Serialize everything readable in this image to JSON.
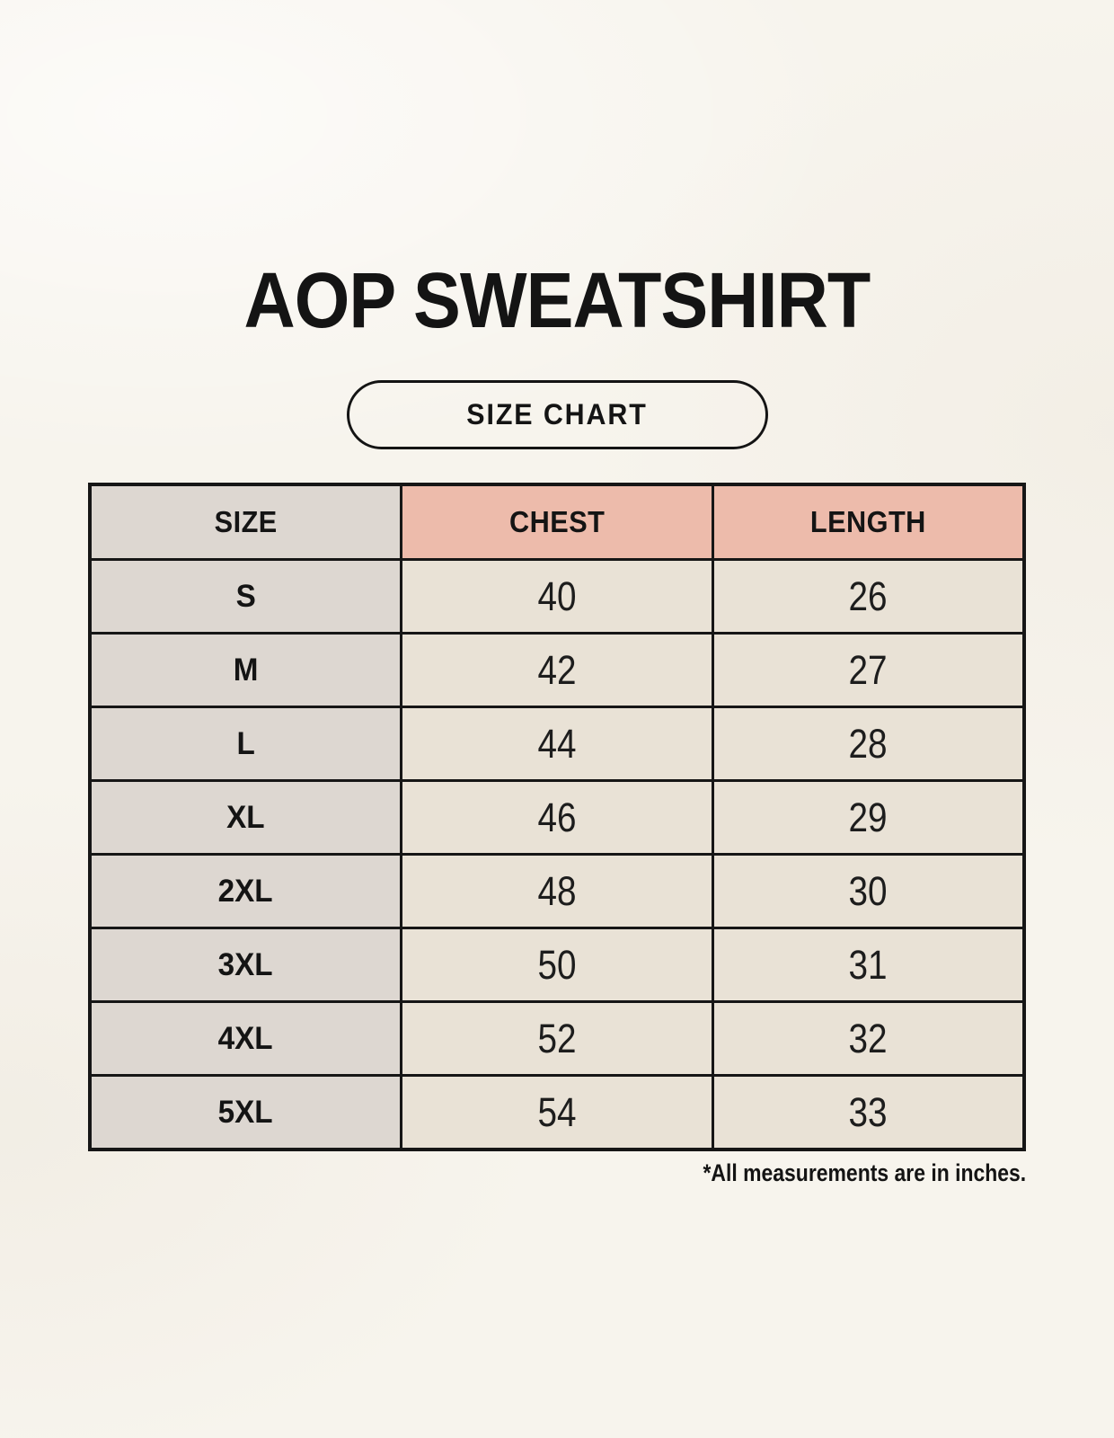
{
  "page": {
    "title": "AOP SWEATSHIRT",
    "badge_label": "SIZE CHART",
    "footnote": "*All measurements are in inches."
  },
  "chart_data": {
    "type": "table",
    "title": "AOP SWEATSHIRT",
    "subtitle": "SIZE CHART",
    "columns": [
      "SIZE",
      "CHEST",
      "LENGTH"
    ],
    "rows": [
      [
        "S",
        "40",
        "26"
      ],
      [
        "M",
        "42",
        "27"
      ],
      [
        "L",
        "44",
        "28"
      ],
      [
        "XL",
        "46",
        "29"
      ],
      [
        "2XL",
        "48",
        "30"
      ],
      [
        "3XL",
        "50",
        "31"
      ],
      [
        "4XL",
        "52",
        "32"
      ],
      [
        "5XL",
        "54",
        "33"
      ]
    ],
    "units_note": "*All measurements are in inches."
  },
  "colors": {
    "page_background": "#f7f4ed",
    "accent_header": "#edbbab",
    "size_column": "#ddd7d1",
    "value_cell": "#e9e2d6",
    "border": "#161616",
    "text": "#141414"
  }
}
